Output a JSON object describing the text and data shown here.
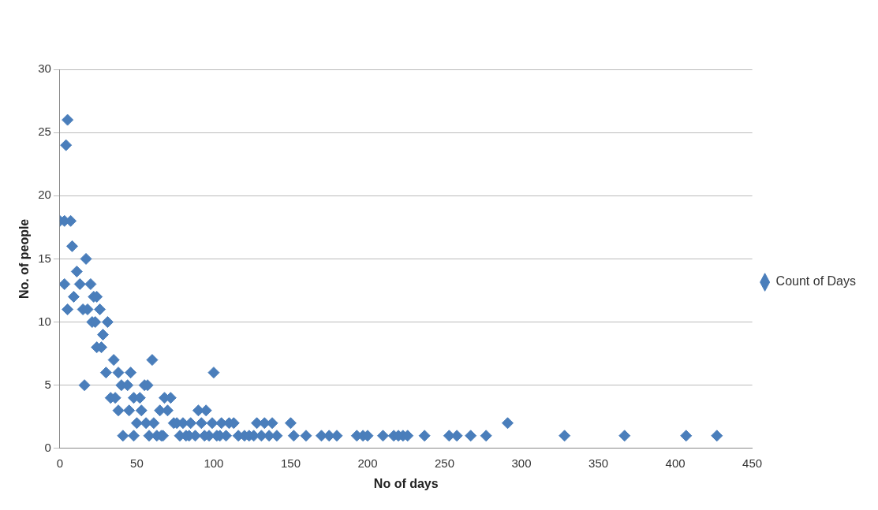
{
  "chart_data": {
    "type": "scatter",
    "xlabel": "No of days",
    "ylabel": "No. of people",
    "xlim": [
      0,
      450
    ],
    "xticks": [
      0,
      50,
      100,
      150,
      200,
      250,
      300,
      350,
      400,
      450
    ],
    "ylim": [
      0,
      30
    ],
    "yticks": [
      0,
      5,
      10,
      15,
      20,
      25,
      30
    ],
    "grid": "y",
    "legend": "right",
    "marker": "diamond",
    "series": [
      {
        "name": "Count of Days",
        "color": "#4a7ebb",
        "x": [
          0,
          3,
          7,
          4,
          5,
          8,
          3,
          5,
          9,
          11,
          13,
          15,
          18,
          17,
          16,
          20,
          22,
          24,
          21,
          23,
          26,
          28,
          24,
          27,
          31,
          30,
          33,
          35,
          38,
          40,
          36,
          38,
          41,
          44,
          46,
          45,
          48,
          50,
          52,
          55,
          57,
          53,
          56,
          60,
          61,
          63,
          65,
          68,
          67,
          70,
          72,
          74,
          76,
          78,
          80,
          82,
          85,
          88,
          90,
          92,
          95,
          97,
          100,
          99,
          102,
          105,
          108,
          110,
          113,
          116,
          120,
          123,
          126,
          128,
          131,
          133,
          136,
          138,
          141,
          150,
          152,
          160,
          170,
          175,
          180,
          193,
          197,
          200,
          210,
          217,
          220,
          223,
          226,
          237,
          253,
          258,
          267,
          277,
          291,
          328,
          367,
          407,
          427,
          48,
          58,
          66,
          84,
          94,
          104
        ],
        "values": [
          18,
          18,
          18,
          24,
          26,
          16,
          13,
          11,
          12,
          14,
          13,
          11,
          11,
          15,
          5,
          13,
          12,
          12,
          10,
          10,
          11,
          9,
          8,
          8,
          10,
          6,
          4,
          7,
          6,
          5,
          4,
          3,
          1,
          5,
          6,
          3,
          4,
          2,
          4,
          5,
          5,
          3,
          2,
          7,
          2,
          1,
          3,
          4,
          1,
          3,
          4,
          2,
          2,
          1,
          2,
          1,
          2,
          1,
          3,
          2,
          3,
          1,
          6,
          2,
          1,
          2,
          1,
          2,
          2,
          1,
          1,
          1,
          1,
          2,
          1,
          2,
          1,
          2,
          1,
          2,
          1,
          1,
          1,
          1,
          1,
          1,
          1,
          1,
          1,
          1,
          1,
          1,
          1,
          1,
          1,
          1,
          1,
          1,
          2,
          1,
          1,
          1,
          1,
          1,
          1,
          1,
          1,
          1,
          1
        ]
      }
    ]
  }
}
